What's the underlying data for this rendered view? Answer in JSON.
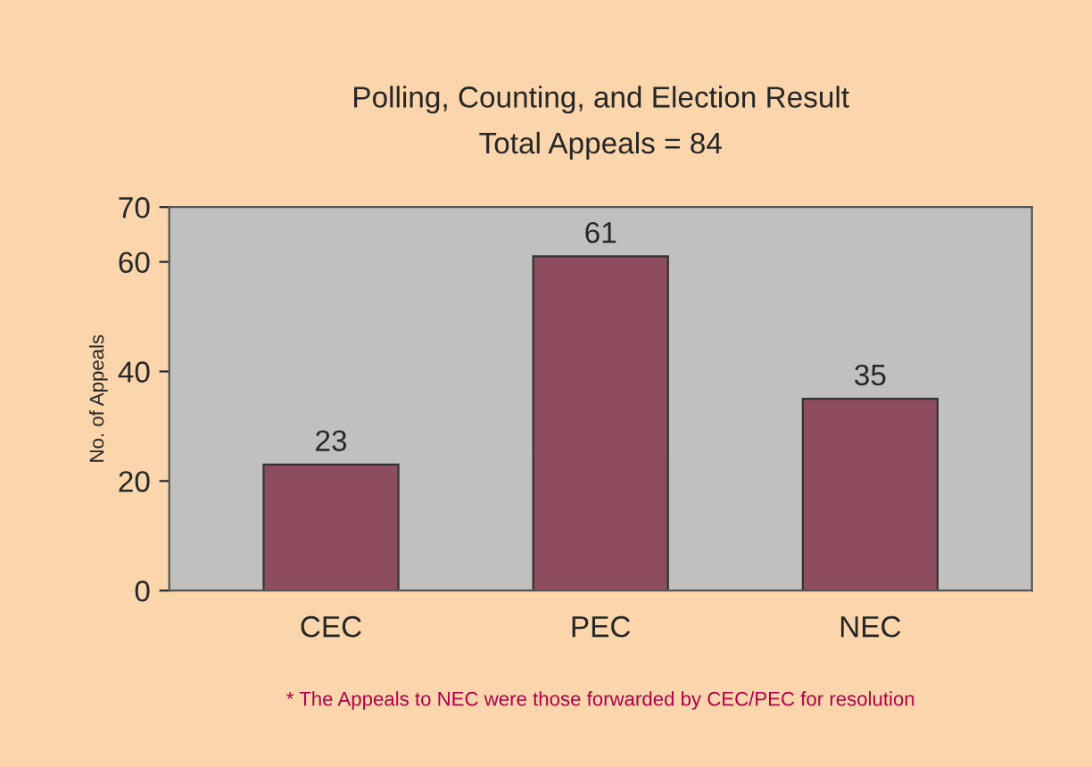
{
  "chart_data": {
    "type": "bar",
    "title": "Polling, Counting, and Election Result",
    "subtitle": "Total Appeals = 84",
    "ylabel": "No. of Appeals",
    "categories": [
      "CEC",
      "PEC",
      "NEC"
    ],
    "values": [
      23,
      61,
      35
    ],
    "color": "#8e4d5e",
    "ylim": [
      0,
      70
    ],
    "yticks": [
      0,
      20,
      40,
      60,
      70
    ],
    "grid": false,
    "legend": false,
    "data_labels": true,
    "annotations": [
      "* The Appeals to NEC were those forwarded by CEC/PEC for resolution"
    ]
  }
}
